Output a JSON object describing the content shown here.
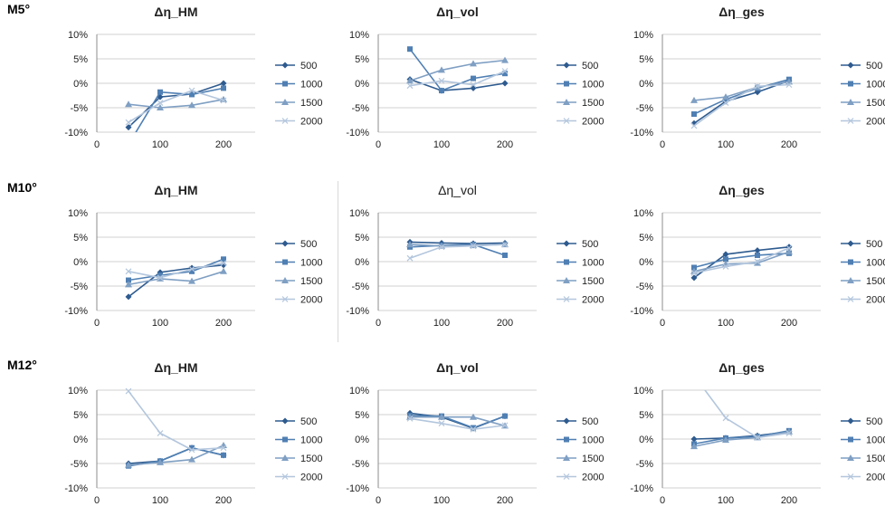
{
  "row_labels": [
    "M5°",
    "M10°",
    "M12°"
  ],
  "chart_data": [
    {
      "type": "line",
      "title": "Δη_HM",
      "title_bold": true,
      "x_ticks": [
        0,
        100,
        200
      ],
      "xlim": [
        0,
        250
      ],
      "ylim": [
        -10,
        10
      ],
      "y_ticks": [
        "10%",
        "5%",
        "0%",
        "-5%",
        "-10%"
      ],
      "series": [
        {
          "name": "500",
          "x": [
            50,
            100,
            150,
            200
          ],
          "y": [
            -9.0,
            -2.8,
            -2.2,
            0.0
          ]
        },
        {
          "name": "1000",
          "x": [
            50,
            100,
            150,
            200
          ],
          "y": [
            -12.5,
            -1.8,
            -2.3,
            -1.0
          ]
        },
        {
          "name": "1500",
          "x": [
            50,
            100,
            150,
            200
          ],
          "y": [
            -4.3,
            -5.0,
            -4.5,
            -3.3
          ]
        },
        {
          "name": "2000",
          "x": [
            50,
            100,
            150,
            200
          ],
          "y": [
            -8.0,
            -4.0,
            -1.5,
            -3.5
          ]
        }
      ]
    },
    {
      "type": "line",
      "title": "Δη_vol",
      "title_bold": true,
      "x_ticks": [
        0,
        100,
        200
      ],
      "xlim": [
        0,
        250
      ],
      "ylim": [
        -10,
        10
      ],
      "y_ticks": [
        "10%",
        "5%",
        "0%",
        "-5%",
        "-10%"
      ],
      "series": [
        {
          "name": "500",
          "x": [
            50,
            100,
            150,
            200
          ],
          "y": [
            0.8,
            -1.5,
            -1.0,
            0.0
          ]
        },
        {
          "name": "1000",
          "x": [
            50,
            100,
            150,
            200
          ],
          "y": [
            7.0,
            -1.5,
            1.0,
            2.0
          ]
        },
        {
          "name": "1500",
          "x": [
            50,
            100,
            150,
            200
          ],
          "y": [
            0.5,
            2.7,
            4.0,
            4.7
          ]
        },
        {
          "name": "2000",
          "x": [
            50,
            100,
            150,
            200
          ],
          "y": [
            -0.5,
            0.5,
            -0.3,
            2.5
          ]
        }
      ]
    },
    {
      "type": "line",
      "title": "Δη_ges",
      "title_bold": true,
      "x_ticks": [
        0,
        100,
        200
      ],
      "xlim": [
        0,
        250
      ],
      "ylim": [
        -10,
        10
      ],
      "y_ticks": [
        "10%",
        "5%",
        "0%",
        "-5%",
        "-10%"
      ],
      "series": [
        {
          "name": "500",
          "x": [
            50,
            100,
            150,
            200
          ],
          "y": [
            -8.2,
            -3.7,
            -1.8,
            0.5
          ]
        },
        {
          "name": "1000",
          "x": [
            50,
            100,
            150,
            200
          ],
          "y": [
            -6.3,
            -3.3,
            -1.0,
            0.8
          ]
        },
        {
          "name": "1500",
          "x": [
            50,
            100,
            150,
            200
          ],
          "y": [
            -3.5,
            -2.8,
            -0.8,
            0.3
          ]
        },
        {
          "name": "2000",
          "x": [
            50,
            100,
            150,
            200
          ],
          "y": [
            -8.7,
            -4.0,
            -0.6,
            -0.3
          ]
        }
      ]
    },
    {
      "type": "line",
      "title": "Δη_HM",
      "title_bold": true,
      "x_ticks": [
        0,
        100,
        200
      ],
      "xlim": [
        0,
        250
      ],
      "ylim": [
        -10,
        10
      ],
      "y_ticks": [
        "10%",
        "5%",
        "0%",
        "-5%",
        "-10%"
      ],
      "series": [
        {
          "name": "500",
          "x": [
            50,
            100,
            150,
            200
          ],
          "y": [
            -7.2,
            -2.2,
            -1.3,
            -0.7
          ]
        },
        {
          "name": "1000",
          "x": [
            50,
            100,
            150,
            200
          ],
          "y": [
            -3.8,
            -2.8,
            -2.0,
            0.5
          ]
        },
        {
          "name": "1500",
          "x": [
            50,
            100,
            150,
            200
          ],
          "y": [
            -4.7,
            -3.5,
            -4.0,
            -2.0
          ]
        },
        {
          "name": "2000",
          "x": [
            50,
            100,
            150,
            200
          ],
          "y": [
            -2.0,
            -3.3,
            -1.5,
            -0.3
          ]
        }
      ]
    },
    {
      "type": "line",
      "title": "Δη_vol",
      "title_bold": false,
      "x_ticks": [
        0,
        100,
        200
      ],
      "xlim": [
        0,
        250
      ],
      "ylim": [
        -10,
        10
      ],
      "y_ticks": [
        "10%",
        "5%",
        "0%",
        "-5%",
        "-10%"
      ],
      "series": [
        {
          "name": "500",
          "x": [
            50,
            100,
            150,
            200
          ],
          "y": [
            4.0,
            3.8,
            3.7,
            3.8
          ]
        },
        {
          "name": "1000",
          "x": [
            50,
            100,
            150,
            200
          ],
          "y": [
            3.0,
            3.3,
            3.5,
            1.3
          ]
        },
        {
          "name": "1500",
          "x": [
            50,
            100,
            150,
            200
          ],
          "y": [
            3.5,
            3.2,
            3.3,
            3.5
          ]
        },
        {
          "name": "2000",
          "x": [
            50,
            100,
            150,
            200
          ],
          "y": [
            0.7,
            3.0,
            3.2,
            3.5
          ]
        }
      ]
    },
    {
      "type": "line",
      "title": "Δη_ges",
      "title_bold": true,
      "x_ticks": [
        0,
        100,
        200
      ],
      "xlim": [
        0,
        250
      ],
      "ylim": [
        -10,
        10
      ],
      "y_ticks": [
        "10%",
        "5%",
        "0%",
        "-5%",
        "-10%"
      ],
      "series": [
        {
          "name": "500",
          "x": [
            50,
            100,
            150,
            200
          ],
          "y": [
            -3.3,
            1.5,
            2.3,
            3.0
          ]
        },
        {
          "name": "1000",
          "x": [
            50,
            100,
            150,
            200
          ],
          "y": [
            -1.2,
            0.5,
            1.3,
            1.7
          ]
        },
        {
          "name": "1500",
          "x": [
            50,
            100,
            150,
            200
          ],
          "y": [
            -2.0,
            -0.5,
            -0.3,
            2.0
          ]
        },
        {
          "name": "2000",
          "x": [
            50,
            100,
            150,
            200
          ],
          "y": [
            -2.3,
            -1.0,
            0.0,
            2.8
          ]
        }
      ]
    },
    {
      "type": "line",
      "title": "Δη_HM",
      "title_bold": true,
      "x_ticks": [
        0,
        100,
        200
      ],
      "xlim": [
        0,
        250
      ],
      "ylim": [
        -10,
        10
      ],
      "y_ticks": [
        "10%",
        "5%",
        "0%",
        "-5%",
        "-10%"
      ],
      "series": [
        {
          "name": "500",
          "x": [
            50,
            100,
            150,
            200
          ],
          "y": [
            -5.0,
            -4.5,
            -1.8,
            -3.3
          ]
        },
        {
          "name": "1000",
          "x": [
            50,
            100,
            150,
            200
          ],
          "y": [
            -5.5,
            -4.5,
            -1.8,
            -3.3
          ]
        },
        {
          "name": "1500",
          "x": [
            50,
            100,
            150,
            200
          ],
          "y": [
            -5.3,
            -4.8,
            -4.2,
            -1.3
          ]
        },
        {
          "name": "2000",
          "x": [
            50,
            100,
            150,
            200
          ],
          "y": [
            9.8,
            1.2,
            -2.2,
            -1.8
          ]
        }
      ]
    },
    {
      "type": "line",
      "title": "Δη_vol",
      "title_bold": true,
      "x_ticks": [
        0,
        100,
        200
      ],
      "xlim": [
        0,
        250
      ],
      "ylim": [
        -10,
        10
      ],
      "y_ticks": [
        "10%",
        "5%",
        "0%",
        "-5%",
        "-10%"
      ],
      "series": [
        {
          "name": "500",
          "x": [
            50,
            100,
            150,
            200
          ],
          "y": [
            5.3,
            4.5,
            2.2,
            4.7
          ]
        },
        {
          "name": "1000",
          "x": [
            50,
            100,
            150,
            200
          ],
          "y": [
            4.8,
            4.7,
            2.3,
            4.7
          ]
        },
        {
          "name": "1500",
          "x": [
            50,
            100,
            150,
            200
          ],
          "y": [
            4.5,
            4.5,
            4.5,
            2.7
          ]
        },
        {
          "name": "2000",
          "x": [
            50,
            100,
            150,
            200
          ],
          "y": [
            4.2,
            3.2,
            2.0,
            2.8
          ]
        }
      ]
    },
    {
      "type": "line",
      "title": "Δη_ges",
      "title_bold": true,
      "x_ticks": [
        0,
        100,
        200
      ],
      "xlim": [
        0,
        250
      ],
      "ylim": [
        -10,
        10
      ],
      "y_ticks": [
        "10%",
        "5%",
        "0%",
        "-5%",
        "-10%"
      ],
      "series": [
        {
          "name": "500",
          "x": [
            50,
            100,
            150,
            200
          ],
          "y": [
            0.0,
            0.2,
            0.7,
            1.5
          ]
        },
        {
          "name": "1000",
          "x": [
            50,
            100,
            150,
            200
          ],
          "y": [
            -1.0,
            0.2,
            0.5,
            1.7
          ]
        },
        {
          "name": "1500",
          "x": [
            50,
            100,
            150,
            200
          ],
          "y": [
            -1.5,
            -0.2,
            0.3,
            1.5
          ]
        },
        {
          "name": "2000",
          "x": [
            50,
            100,
            150,
            200
          ],
          "y": [
            13.0,
            4.3,
            0.3,
            1.2
          ]
        }
      ]
    }
  ],
  "series_style": [
    {
      "color": "#2e5b8f",
      "marker": "diamond"
    },
    {
      "color": "#4f7fb3",
      "marker": "square"
    },
    {
      "color": "#7f9fc3",
      "marker": "triangle"
    },
    {
      "color": "#b3c6dd",
      "marker": "cross"
    }
  ]
}
